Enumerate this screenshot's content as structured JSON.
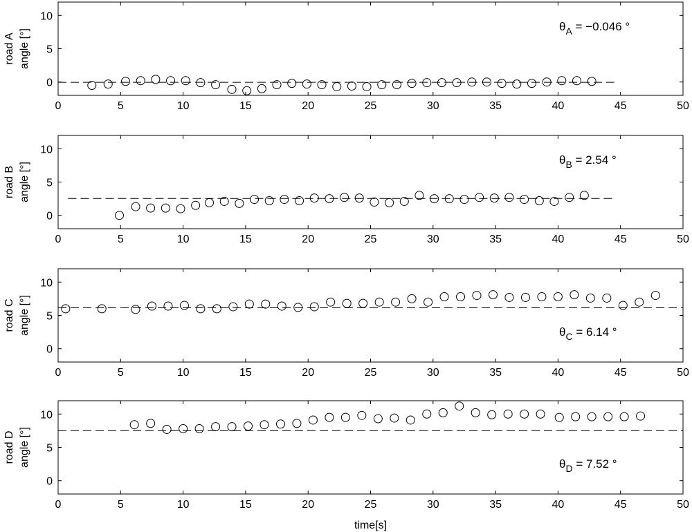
{
  "colors": {
    "axis": "#000000",
    "marker": "#000000",
    "ref_line": "#000000",
    "background": "#ffffff"
  },
  "chart_data": [
    {
      "type": "scatter",
      "ylabel_line1": "road A",
      "ylabel_line2": "angle [°]",
      "xlabel": "",
      "xlim": [
        0,
        50
      ],
      "ylim": [
        -2,
        12
      ],
      "xticks": [
        0,
        5,
        10,
        15,
        20,
        25,
        30,
        35,
        40,
        45,
        50
      ],
      "yticks": [
        0,
        5,
        10
      ],
      "grid": false,
      "ref_line": {
        "value": -0.046,
        "x_start": 0,
        "x_end": 44.5,
        "style": "dashed"
      },
      "annotation": {
        "symbol": "θ",
        "sub": "A",
        "text": " = −0.046 °",
        "placement": "top-right"
      },
      "x": [
        2.7,
        4.0,
        5.4,
        6.6,
        7.8,
        9.0,
        10.2,
        11.4,
        12.6,
        13.9,
        15.1,
        16.3,
        17.5,
        18.7,
        19.9,
        21.1,
        22.3,
        23.5,
        24.7,
        25.9,
        27.1,
        28.3,
        29.5,
        30.7,
        31.9,
        33.1,
        34.3,
        35.5,
        36.7,
        37.9,
        39.1,
        40.3,
        41.5,
        42.7
      ],
      "y": [
        -0.5,
        -0.3,
        0.1,
        0.2,
        0.4,
        0.2,
        0.2,
        -0.1,
        -0.4,
        -1.1,
        -1.3,
        -1.0,
        -0.4,
        -0.2,
        -0.3,
        -0.4,
        -0.7,
        -0.6,
        -0.7,
        -0.4,
        -0.4,
        -0.2,
        -0.1,
        -0.1,
        -0.1,
        0.0,
        0.0,
        -0.2,
        -0.3,
        -0.2,
        0.0,
        0.2,
        0.2,
        0.1
      ]
    },
    {
      "type": "scatter",
      "ylabel_line1": "road B",
      "ylabel_line2": "angle [°]",
      "xlabel": "",
      "xlim": [
        0,
        50
      ],
      "ylim": [
        -2,
        12
      ],
      "xticks": [
        0,
        5,
        10,
        15,
        20,
        25,
        30,
        35,
        40,
        45,
        50
      ],
      "yticks": [
        0,
        5,
        10
      ],
      "grid": false,
      "ref_line": {
        "value": 2.54,
        "x_start": 0.8,
        "x_end": 44.5,
        "style": "dashed"
      },
      "annotation": {
        "symbol": "θ",
        "sub": "B",
        "text": " = 2.54 °",
        "placement": "top-right"
      },
      "x": [
        4.9,
        6.2,
        7.4,
        8.6,
        9.8,
        11.0,
        12.1,
        13.3,
        14.5,
        15.7,
        16.9,
        18.1,
        19.3,
        20.5,
        21.7,
        22.9,
        24.1,
        25.3,
        26.5,
        27.7,
        28.9,
        30.1,
        31.3,
        32.5,
        33.7,
        34.9,
        36.1,
        37.3,
        38.5,
        39.7,
        40.9,
        42.1
      ],
      "y": [
        0.0,
        1.3,
        1.1,
        1.1,
        1.0,
        1.5,
        1.9,
        2.1,
        1.8,
        2.4,
        2.2,
        2.4,
        2.2,
        2.6,
        2.5,
        2.7,
        2.6,
        2.0,
        1.9,
        2.1,
        3.0,
        2.5,
        2.5,
        2.4,
        2.7,
        2.6,
        2.7,
        2.4,
        2.2,
        2.1,
        2.7,
        3.0
      ]
    },
    {
      "type": "scatter",
      "ylabel_line1": "road C",
      "ylabel_line2": "angle [°]",
      "xlabel": "",
      "xlim": [
        0,
        50
      ],
      "ylim": [
        -2,
        12
      ],
      "xticks": [
        0,
        5,
        10,
        15,
        20,
        25,
        30,
        35,
        40,
        45,
        50
      ],
      "yticks": [
        0,
        5,
        10
      ],
      "grid": false,
      "ref_line": {
        "value": 6.14,
        "x_start": 0,
        "x_end": 50,
        "style": "dashed"
      },
      "annotation": {
        "symbol": "θ",
        "sub": "C",
        "text": " = 6.14 °",
        "placement": "lower-right"
      },
      "x": [
        0.6,
        3.5,
        6.2,
        7.5,
        8.8,
        10.1,
        11.4,
        12.7,
        14.0,
        15.3,
        16.6,
        17.9,
        19.2,
        20.5,
        21.8,
        23.1,
        24.4,
        25.7,
        27.0,
        28.3,
        29.6,
        30.9,
        32.2,
        33.5,
        34.8,
        36.1,
        37.4,
        38.7,
        40.0,
        41.3,
        42.6,
        43.9,
        45.2,
        46.5,
        47.8
      ],
      "y": [
        6.0,
        6.0,
        5.9,
        6.4,
        6.4,
        6.5,
        6.0,
        6.0,
        6.3,
        6.7,
        6.7,
        6.4,
        6.2,
        6.3,
        7.0,
        6.8,
        6.8,
        7.0,
        7.0,
        7.5,
        7.0,
        7.8,
        7.8,
        8.0,
        8.1,
        7.7,
        7.7,
        7.8,
        7.8,
        8.1,
        7.6,
        7.6,
        6.5,
        7.0,
        8.0
      ]
    },
    {
      "type": "scatter",
      "ylabel_line1": "road D",
      "ylabel_line2": "angle [°]",
      "xlabel": "time[s]",
      "xlim": [
        0,
        50
      ],
      "ylim": [
        -2,
        12
      ],
      "xticks": [
        0,
        5,
        10,
        15,
        20,
        25,
        30,
        35,
        40,
        45,
        50
      ],
      "yticks": [
        0,
        5,
        10
      ],
      "grid": false,
      "ref_line": {
        "value": 7.52,
        "x_start": 0,
        "x_end": 50,
        "style": "dashed"
      },
      "annotation": {
        "symbol": "θ",
        "sub": "D",
        "text": " = 7.52 °",
        "placement": "lower-right"
      },
      "x": [
        6.1,
        7.4,
        8.7,
        10.0,
        11.3,
        12.6,
        13.9,
        15.2,
        16.5,
        17.8,
        19.1,
        20.4,
        21.7,
        23.0,
        24.3,
        25.6,
        26.9,
        28.2,
        29.5,
        30.8,
        32.1,
        33.4,
        34.7,
        36.0,
        37.3,
        38.6,
        40.1,
        41.4,
        42.7,
        44.0,
        45.3,
        46.6
      ],
      "y": [
        8.4,
        8.6,
        7.7,
        7.8,
        7.8,
        8.1,
        8.1,
        8.2,
        8.4,
        8.5,
        8.6,
        9.1,
        9.5,
        9.5,
        9.8,
        9.3,
        9.4,
        9.1,
        10.0,
        10.2,
        11.2,
        10.2,
        9.9,
        10.0,
        10.0,
        10.0,
        9.5,
        9.6,
        9.6,
        9.6,
        9.6,
        9.7
      ]
    }
  ]
}
